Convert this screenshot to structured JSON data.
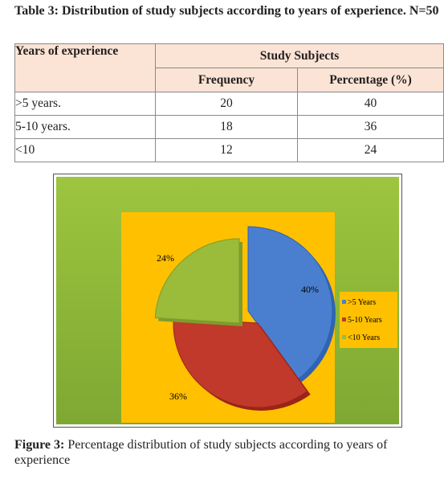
{
  "table": {
    "title": "Table 3: Distribution of study subjects according to years of experience. N=50",
    "header_col": "Years of experience",
    "header_group": "Study Subjects",
    "header_freq": "Frequency",
    "header_pct": "Percentage (%)",
    "rows": [
      {
        "label": ">5 years.",
        "frequency": "20",
        "percentage": "40"
      },
      {
        "label": "5-10 years.",
        "frequency": "18",
        "percentage": "36"
      },
      {
        "label": "<10",
        "frequency": "12",
        "percentage": "24"
      }
    ]
  },
  "figure": {
    "caption_label": "Figure 3:",
    "caption_text": " Percentage distribution of study subjects according to years of experience"
  },
  "chart_data": {
    "type": "pie",
    "categories": [
      ">5 Years",
      "5-10 Years",
      "<10  Years"
    ],
    "values": [
      40,
      36,
      24
    ],
    "data_labels": [
      "40%",
      "36%",
      "24%"
    ],
    "colors": [
      "#4a7fd0",
      "#c0392b",
      "#9bbb3b"
    ],
    "background_outer": "#8cb53a",
    "background_inner": "#ffc000",
    "exploded": true,
    "legend_position": "right"
  }
}
